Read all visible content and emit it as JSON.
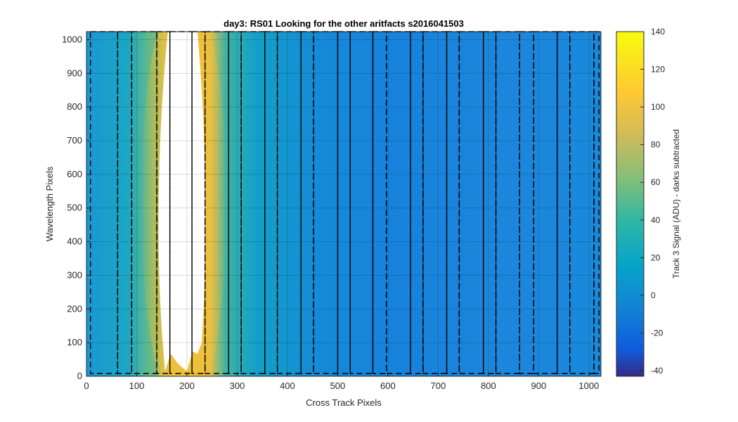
{
  "chart_data": {
    "type": "heatmap",
    "title": "day3: RS01  Looking for the other aritfacts  s2016041503",
    "xlabel": "Cross Track Pixels",
    "ylabel": "Wavelength Pixels",
    "xlim": [
      0,
      1024
    ],
    "ylim": [
      0,
      1024
    ],
    "x_ticks": [
      0,
      100,
      200,
      300,
      400,
      500,
      600,
      700,
      800,
      900,
      1000
    ],
    "y_ticks": [
      0,
      100,
      200,
      300,
      400,
      500,
      600,
      700,
      800,
      900,
      1000
    ],
    "grid": true,
    "colormap": "parula",
    "saturated_color": "#ffffff",
    "colorbar": {
      "label": "Track 3 Signal (ADU) - darks subtracted",
      "clim": [
        -43,
        140
      ],
      "ticks": [
        -40,
        -20,
        0,
        20,
        40,
        60,
        80,
        100,
        120,
        140
      ]
    },
    "saturated_region": {
      "x_range": [
        148,
        235
      ],
      "y_range": [
        15,
        1024
      ]
    },
    "dashed_boxes": [
      {
        "x": [
          8,
          62
        ]
      },
      {
        "x": [
          62,
          90
        ]
      },
      {
        "x": [
          90,
          140
        ]
      },
      {
        "x": [
          140,
          166
        ]
      },
      {
        "x": [
          166,
          210
        ]
      },
      {
        "x": [
          210,
          236
        ]
      },
      {
        "x": [
          236,
          283
        ]
      },
      {
        "x": [
          283,
          308
        ]
      },
      {
        "x": [
          308,
          355
        ]
      },
      {
        "x": [
          355,
          380
        ]
      },
      {
        "x": [
          380,
          427
        ]
      },
      {
        "x": [
          427,
          452
        ]
      },
      {
        "x": [
          452,
          500
        ]
      },
      {
        "x": [
          500,
          525
        ]
      },
      {
        "x": [
          525,
          570
        ]
      },
      {
        "x": [
          570,
          597
        ]
      },
      {
        "x": [
          597,
          645
        ]
      },
      {
        "x": [
          645,
          670
        ]
      },
      {
        "x": [
          670,
          717
        ]
      },
      {
        "x": [
          717,
          742
        ]
      },
      {
        "x": [
          742,
          790
        ]
      },
      {
        "x": [
          790,
          815
        ]
      },
      {
        "x": [
          815,
          862
        ]
      },
      {
        "x": [
          862,
          890
        ]
      },
      {
        "x": [
          890,
          937
        ]
      },
      {
        "x": [
          937,
          962
        ]
      },
      {
        "x": [
          962,
          1010
        ]
      },
      {
        "x": [
          1010,
          1020
        ]
      }
    ]
  }
}
